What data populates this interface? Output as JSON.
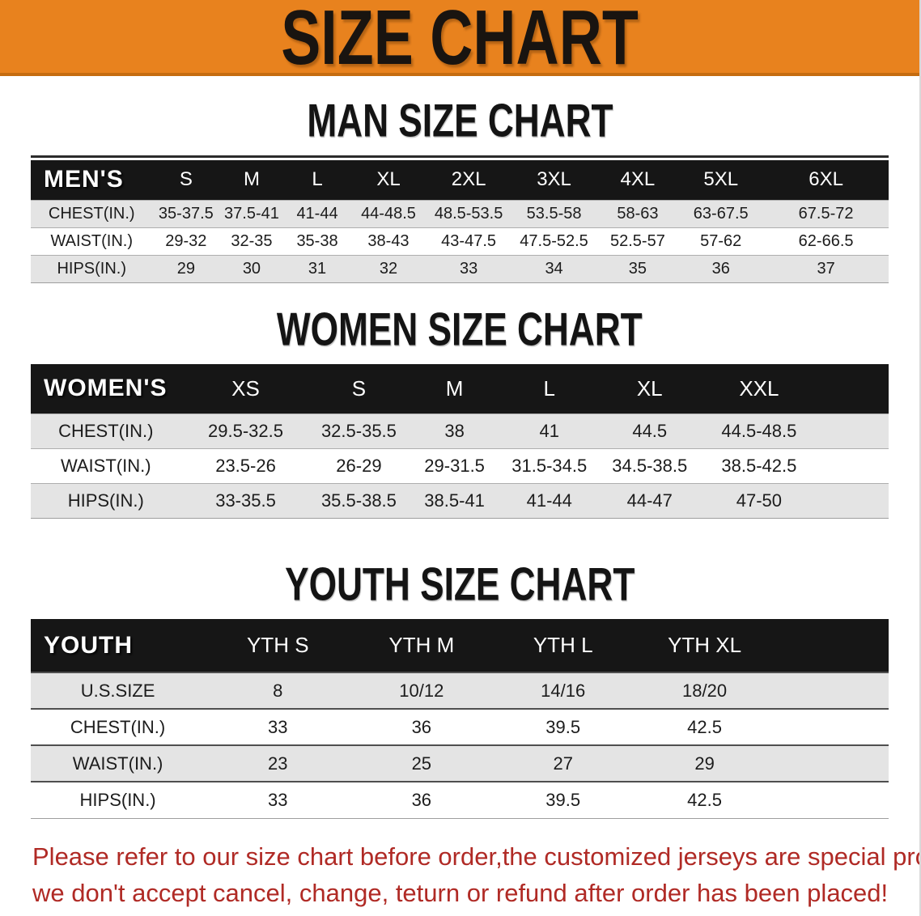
{
  "banner": {
    "title": "SIZE CHART"
  },
  "sections": [
    {
      "title": "MAN SIZE CHART",
      "table": {
        "header_label": "MEN'S",
        "columns": [
          "S",
          "M",
          "L",
          "XL",
          "2XL",
          "3XL",
          "4XL",
          "5XL",
          "6XL"
        ],
        "rows": [
          {
            "label": "CHEST(IN.)",
            "values": [
              "35-37.5",
              "37.5-41",
              "41-44",
              "44-48.5",
              "48.5-53.5",
              "53.5-58",
              "58-63",
              "63-67.5",
              "67.5-72"
            ]
          },
          {
            "label": "WAIST(IN.)",
            "values": [
              "29-32",
              "32-35",
              "35-38",
              "38-43",
              "43-47.5",
              "47.5-52.5",
              "52.5-57",
              "57-62",
              "62-66.5"
            ]
          },
          {
            "label": "HIPS(IN.)",
            "values": [
              "29",
              "30",
              "31",
              "32",
              "33",
              "34",
              "35",
              "36",
              "37"
            ]
          }
        ]
      }
    },
    {
      "title": "WOMEN SIZE CHART",
      "table": {
        "header_label": "WOMEN'S",
        "columns": [
          "XS",
          "S",
          "M",
          "L",
          "XL",
          "XXL"
        ],
        "rows": [
          {
            "label": "CHEST(IN.)",
            "values": [
              "29.5-32.5",
              "32.5-35.5",
              "38",
              "41",
              "44.5",
              "44.5-48.5"
            ]
          },
          {
            "label": "WAIST(IN.)",
            "values": [
              "23.5-26",
              "26-29",
              "29-31.5",
              "31.5-34.5",
              "34.5-38.5",
              "38.5-42.5"
            ]
          },
          {
            "label": "HIPS(IN.)",
            "values": [
              "33-35.5",
              "35.5-38.5",
              "38.5-41",
              "41-44",
              "44-47",
              "47-50"
            ]
          }
        ]
      }
    },
    {
      "title": "YOUTH SIZE CHART",
      "table": {
        "header_label": "YOUTH",
        "columns": [
          "YTH S",
          "YTH M",
          "YTH L",
          "YTH XL"
        ],
        "rows": [
          {
            "label": "U.S.SIZE",
            "values": [
              "8",
              "10/12",
              "14/16",
              "18/20"
            ]
          },
          {
            "label": "CHEST(IN.)",
            "values": [
              "33",
              "36",
              "39.5",
              "42.5"
            ]
          },
          {
            "label": "WAIST(IN.)",
            "values": [
              "23",
              "25",
              "27",
              "29"
            ]
          },
          {
            "label": "HIPS(IN.)",
            "values": [
              "33",
              "36",
              "39.5",
              "42.5"
            ]
          }
        ]
      }
    }
  ],
  "disclaimer": {
    "line1": "Please refer to our size chart before order,the customized jerseys are special products,",
    "line2": "we don't accept cancel, change, teturn or refund after order has been placed!"
  },
  "colors": {
    "banner_bg": "#E8821E",
    "banner_edge": "#C56C10",
    "header_bar": "#161616",
    "row_stripe": "#E4E4E4",
    "disclaimer_red": "#B02A25"
  }
}
